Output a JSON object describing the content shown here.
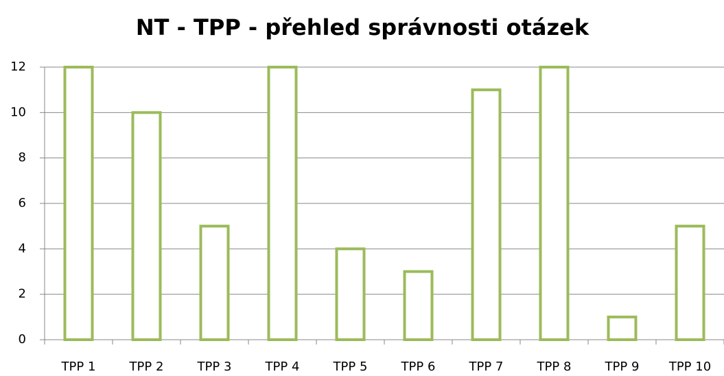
{
  "chart_data": {
    "type": "bar",
    "title": "NT - TPP - přehled správnosti otázek",
    "categories": [
      "TPP 1",
      "TPP 2",
      "TPP 3",
      "TPP 4",
      "TPP 5",
      "TPP 6",
      "TPP 7",
      "TPP 8",
      "TPP 9",
      "TPP 10"
    ],
    "values": [
      12,
      10,
      5,
      12,
      4,
      3,
      11,
      12,
      1,
      5
    ],
    "color": "#9bbb59",
    "ylim": [
      0,
      12
    ],
    "yticks": [
      0,
      2,
      4,
      6,
      8,
      10,
      12
    ],
    "grid": true
  }
}
